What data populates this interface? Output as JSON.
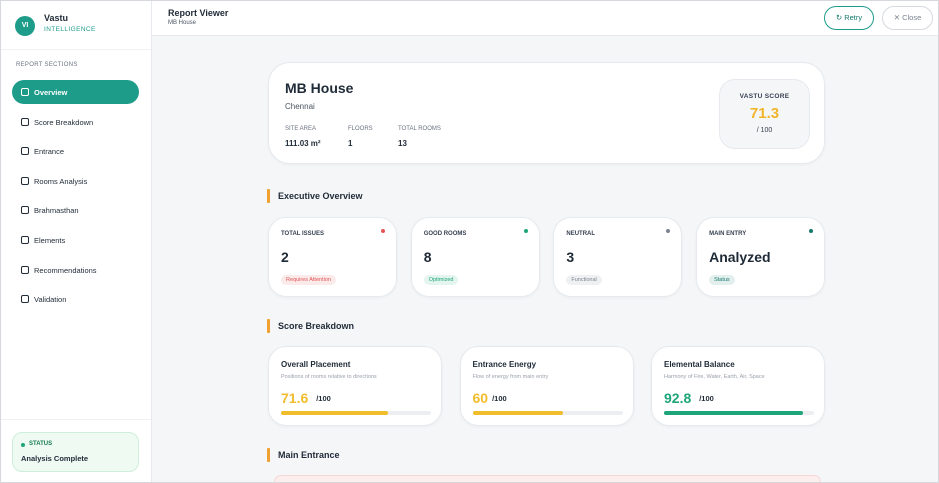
{
  "brand": {
    "initials": "VI",
    "name": "Vastu",
    "subtitle": "INTELLIGENCE"
  },
  "sidebar": {
    "section_label": "REPORT SECTIONS",
    "items": [
      "Overview",
      "Score Breakdown",
      "Entrance",
      "Rooms Analysis",
      "Brahmasthan",
      "Elements",
      "Recommendations",
      "Validation"
    ],
    "status": {
      "label": "STATUS",
      "text": "Analysis Complete"
    }
  },
  "header": {
    "title": "Report Viewer",
    "subtitle": "MB House",
    "buttons": [
      "Retry",
      "Close"
    ]
  },
  "property": {
    "name": "MB House",
    "city": "Chennai",
    "stats": [
      {
        "label": "SITE AREA",
        "value": "111.03 m²"
      },
      {
        "label": "FLOORS",
        "value": 1
      },
      {
        "label": "TOTAL ROOMS",
        "value": 13
      }
    ],
    "score": {
      "label": "VASTU SCORE",
      "value": 71.3,
      "max_label": "/ 100"
    }
  },
  "overview": {
    "title": "Executive Overview",
    "cards": [
      {
        "label": "TOTAL ISSUES",
        "value": 2,
        "tag": "Requires Attention",
        "color": "#e25555"
      },
      {
        "label": "GOOD ROOMS",
        "value": 8,
        "tag": "Optimized",
        "color": "#1fa57a"
      },
      {
        "label": "NEUTRAL",
        "value": 3,
        "tag": "Functional",
        "color": "#7b8491"
      },
      {
        "label": "MAIN ENTRY",
        "value": "Analyzed",
        "tag": "Status",
        "color": "#157a6e"
      }
    ]
  },
  "score_breakdown": {
    "title": "Score Breakdown",
    "items": [
      {
        "name": "Overall Placement",
        "description": "Positions of rooms relative to directions",
        "score": 71.6,
        "max": {
          "value": 100,
          "label": "/100"
        },
        "color": "#f2bd2c"
      },
      {
        "name": "Entrance Energy",
        "description": "Flow of energy from main entry",
        "score": 60,
        "max": {
          "value": 100,
          "label": "/100"
        },
        "color": "#f2bd2c"
      },
      {
        "name": "Elemental Balance",
        "description": "Harmony of Fire, Water, Earth, Air, Space",
        "score": 92.8,
        "max": {
          "value": 100,
          "label": "/100"
        },
        "color": "#1fa57a"
      }
    ]
  },
  "main_entrance": {
    "title": "Main Entrance"
  }
}
